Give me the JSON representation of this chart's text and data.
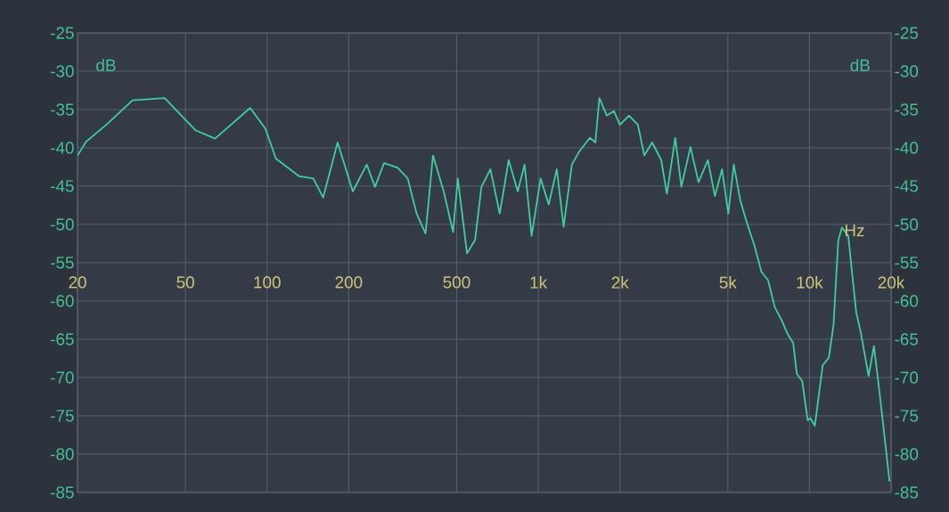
{
  "chart_data": {
    "type": "line",
    "xlabel": "Hz",
    "ylabel": "dB",
    "y2label": "dB",
    "log": "x",
    "grid": true,
    "marker": "none",
    "line_style": "solid",
    "xlim": [
      20,
      20000
    ],
    "ylim": [
      -85,
      -25
    ],
    "y2lim": [
      -85,
      -25
    ],
    "xticks": [
      20,
      50,
      100,
      200,
      500,
      {
        "value": 1000,
        "label": "1k"
      },
      {
        "value": 2000,
        "label": "2k"
      },
      {
        "value": 5000,
        "label": "5k"
      },
      {
        "value": 10000,
        "label": "10k"
      },
      {
        "value": 20000,
        "label": "20k"
      }
    ],
    "yticks": [
      -25,
      -30,
      -35,
      -40,
      -45,
      -50,
      -55,
      -60,
      -65,
      -70,
      -75,
      -80,
      -85
    ],
    "y2ticks": [
      -25,
      -30,
      -35,
      -40,
      -45,
      -50,
      -55,
      -60,
      -65,
      -70,
      -75,
      -80,
      -85
    ],
    "x": [
      20,
      21.5,
      25.7,
      31.9,
      41.9,
      54.4,
      64.3,
      86.6,
      98.6,
      107.7,
      131,
      148,
      161,
      182,
      207,
      233,
      250,
      270,
      303,
      330,
      356,
      384,
      409,
      448,
      485,
      505,
      546,
      585,
      617,
      666,
      721,
      778,
      840,
      890,
      945,
      1020,
      1093,
      1170,
      1240,
      1330,
      1415,
      1550,
      1624,
      1680,
      1790,
      1900,
      2000,
      2160,
      2330,
      2460,
      2630,
      2840,
      2980,
      3200,
      3370,
      3640,
      3900,
      4220,
      4480,
      4760,
      5020,
      5260,
      5560,
      5880,
      6260,
      6650,
      7040,
      7450,
      7920,
      8300,
      8710,
      8980,
      9410,
      9850,
      10070,
      10470,
      11190,
      11790,
      12270,
      12770,
      13180,
      13900,
      14860,
      15480,
      15990,
      16520,
      17290,
      17860,
      18590,
      19740
    ],
    "series": [
      {
        "color": "#3fcf9f",
        "values": [
          -41,
          -39.2,
          -36.9,
          -33.8,
          -33.5,
          -37.7,
          -38.8,
          -34.8,
          -37.5,
          -41.4,
          -43.7,
          -44,
          -46.5,
          -39.3,
          -45.7,
          -42.2,
          -45.1,
          -42,
          -42.6,
          -44,
          -48.6,
          -51.2,
          -41,
          -45.7,
          -51,
          -44,
          -53.8,
          -52,
          -45.1,
          -42.8,
          -48.6,
          -41.6,
          -45.7,
          -42.2,
          -51.5,
          -44,
          -47.4,
          -42.8,
          -50.3,
          -42.2,
          -40.5,
          -38.7,
          -39.3,
          -33.5,
          -35.8,
          -35.2,
          -37,
          -35.8,
          -37,
          -41,
          -39.3,
          -41.6,
          -46,
          -38.7,
          -45.1,
          -39.9,
          -44.5,
          -41.6,
          -46.3,
          -42.8,
          -48.6,
          -42.2,
          -46.9,
          -49.8,
          -52.7,
          -56.2,
          -57.3,
          -60.8,
          -62.6,
          -64.3,
          -65.5,
          -69.5,
          -70.5,
          -75.6,
          -75.3,
          -76.3,
          -68.4,
          -67.4,
          -63.1,
          -52.1,
          -50.4,
          -51.5,
          -61.4,
          -64.2,
          -67,
          -69.8,
          -65.9,
          -70,
          -75.3,
          -83.6
        ]
      }
    ]
  }
}
